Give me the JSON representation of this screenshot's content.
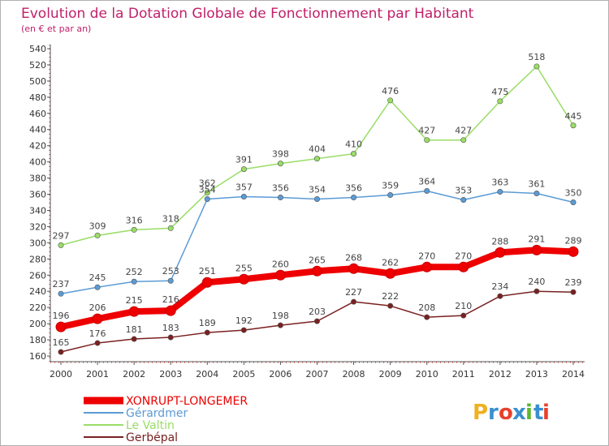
{
  "chart_data": {
    "type": "line",
    "title": "Evolution de la Dotation Globale de Fonctionnement par Habitant",
    "subtitle": "(en € et par an)",
    "x": [
      "2000",
      "2001",
      "2002",
      "2003",
      "2004",
      "2005",
      "2006",
      "2007",
      "2008",
      "2009",
      "2010",
      "2011",
      "2012",
      "2013",
      "2014"
    ],
    "y_ticks": [
      "160",
      "180",
      "200",
      "220",
      "240",
      "260",
      "280",
      "300",
      "320",
      "340",
      "360",
      "380",
      "400",
      "420",
      "440",
      "460",
      "480",
      "500",
      "520",
      "540"
    ],
    "ylim": [
      160,
      540
    ],
    "grid": false,
    "legend_position": "bottom-left",
    "series": [
      {
        "name": "XONRUPT-LONGEMER",
        "color": "#ee0000",
        "values": [
          196,
          206,
          215,
          216,
          251,
          255,
          260,
          265,
          268,
          262,
          270,
          270,
          288,
          291,
          289
        ]
      },
      {
        "name": "Gérardmer",
        "color": "#5b9bd5",
        "values": [
          237,
          245,
          252,
          253,
          354,
          357,
          356,
          354,
          356,
          359,
          364,
          353,
          363,
          361,
          350
        ]
      },
      {
        "name": "Le Valtin",
        "color": "#99dd66",
        "values": [
          297,
          309,
          316,
          318,
          362,
          391,
          398,
          404,
          410,
          476,
          427,
          427,
          475,
          518,
          445
        ]
      },
      {
        "name": "Gerbépal",
        "color": "#7a2020",
        "values": [
          165,
          176,
          181,
          183,
          189,
          192,
          198,
          203,
          227,
          222,
          208,
          210,
          234,
          240,
          239
        ]
      }
    ]
  },
  "logo": {
    "text": "Proxiti",
    "letters": [
      "P",
      "r",
      "o",
      "x",
      "i",
      "t",
      "i"
    ],
    "colors": [
      "#f0b020",
      "#3a8fd0",
      "#e8402a",
      "#3a8fd0",
      "#5cb82e",
      "#3a8fd0",
      "#e8402a"
    ]
  }
}
